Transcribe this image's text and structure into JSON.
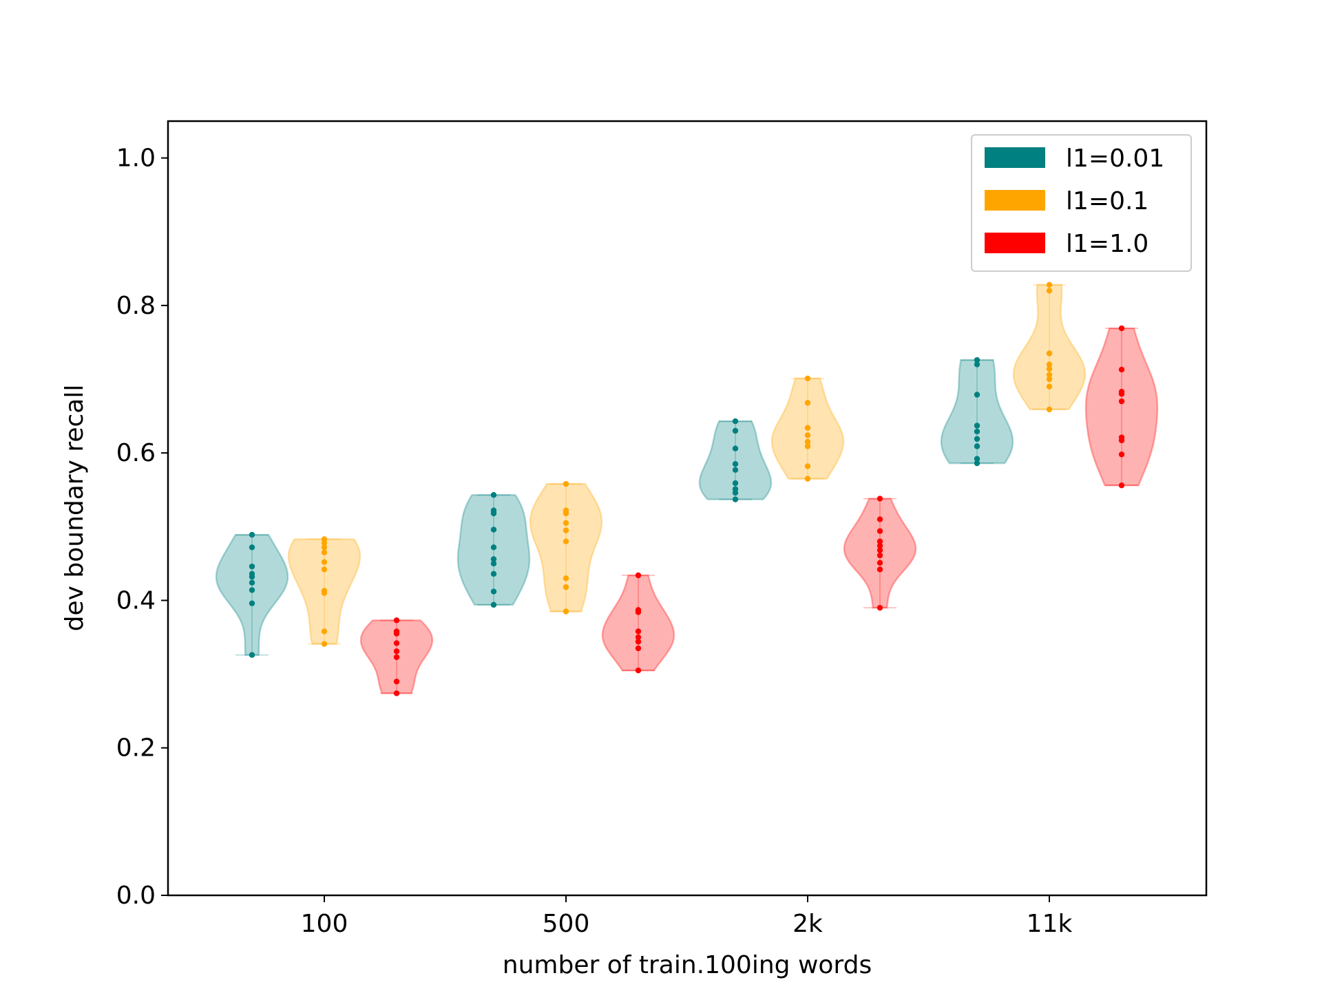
{
  "chart_data": {
    "type": "violin",
    "xlabel": "number of train.100ing words",
    "ylabel": "dev boundary recall",
    "categories": [
      "100",
      "500",
      "2k",
      "11k"
    ],
    "ylim": [
      0.0,
      1.05
    ],
    "yticks": [
      "0.0",
      "0.2",
      "0.4",
      "0.6",
      "0.8",
      "1.0"
    ],
    "legend_position": "top-right",
    "series": [
      {
        "name": "l1=0.01",
        "color": "#008080",
        "points": [
          [
            0.326,
            0.396,
            0.414,
            0.424,
            0.432,
            0.436,
            0.446,
            0.472,
            0.489
          ],
          [
            0.394,
            0.412,
            0.436,
            0.45,
            0.456,
            0.472,
            0.496,
            0.518,
            0.522,
            0.543
          ],
          [
            0.537,
            0.546,
            0.551,
            0.559,
            0.577,
            0.585,
            0.606,
            0.63,
            0.643
          ],
          [
            0.586,
            0.592,
            0.609,
            0.619,
            0.629,
            0.637,
            0.679,
            0.72,
            0.726
          ]
        ]
      },
      {
        "name": "l1=0.1",
        "color": "#FFA500",
        "points": [
          [
            0.341,
            0.358,
            0.41,
            0.413,
            0.442,
            0.452,
            0.465,
            0.472,
            0.478,
            0.483
          ],
          [
            0.385,
            0.418,
            0.43,
            0.48,
            0.495,
            0.505,
            0.518,
            0.522,
            0.558
          ],
          [
            0.565,
            0.582,
            0.609,
            0.615,
            0.624,
            0.634,
            0.668,
            0.701
          ],
          [
            0.659,
            0.69,
            0.7,
            0.706,
            0.714,
            0.72,
            0.735,
            0.82,
            0.828
          ]
        ]
      },
      {
        "name": "l1=1.0",
        "color": "#FF0000",
        "points": [
          [
            0.274,
            0.29,
            0.323,
            0.331,
            0.342,
            0.355,
            0.358,
            0.373
          ],
          [
            0.305,
            0.335,
            0.344,
            0.35,
            0.358,
            0.384,
            0.387,
            0.434
          ],
          [
            0.39,
            0.442,
            0.451,
            0.461,
            0.468,
            0.474,
            0.48,
            0.494,
            0.51,
            0.538
          ],
          [
            0.556,
            0.598,
            0.617,
            0.621,
            0.67,
            0.68,
            0.683,
            0.713,
            0.769
          ]
        ]
      }
    ]
  }
}
